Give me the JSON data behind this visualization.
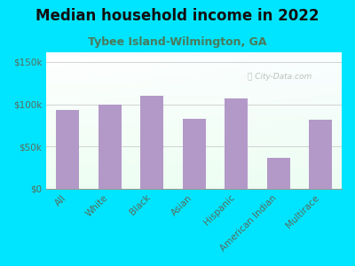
{
  "title": "Median household income in 2022",
  "subtitle": "Tybee Island-Wilmington, GA",
  "categories": [
    "All",
    "White",
    "Black",
    "Asian",
    "Hispanic",
    "American Indian",
    "Multirace"
  ],
  "values": [
    93000,
    100000,
    110000,
    83000,
    107000,
    37000,
    82000
  ],
  "bar_color": "#b399c8",
  "background_outer": "#00e5ff",
  "title_color": "#111111",
  "subtitle_color": "#4a7a5a",
  "tick_label_color": "#5a6a5a",
  "ylabel_ticks": [
    "$0",
    "$50k",
    "$100k",
    "$150k"
  ],
  "ylabel_values": [
    0,
    50000,
    100000,
    150000
  ],
  "ylim": [
    0,
    162000
  ],
  "watermark": "City-Data.com",
  "title_fontsize": 12,
  "subtitle_fontsize": 9,
  "tick_fontsize": 7.5
}
